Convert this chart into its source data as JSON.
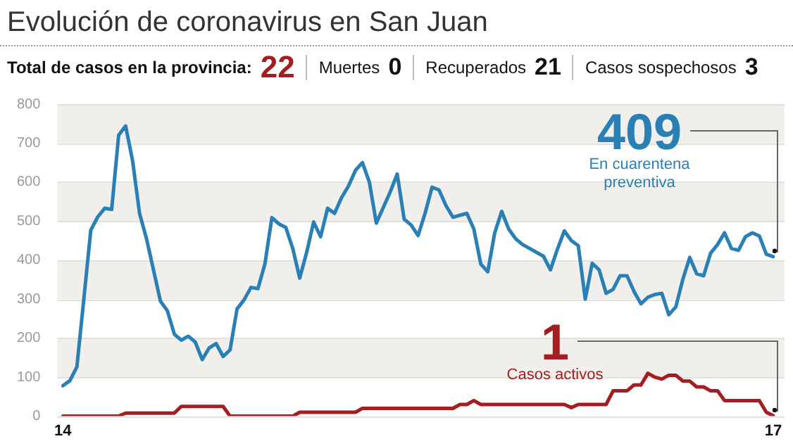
{
  "chart_data": {
    "type": "line",
    "title": "Evolución de coronavirus en San Juan",
    "annotations": [
      "Total de casos en la provincia:",
      "22",
      "Muertes",
      "0",
      "Recuperados",
      "21",
      "Casos sospechosos",
      "3"
    ],
    "categories": [
      "14",
      null,
      null,
      null,
      null,
      null,
      null,
      null,
      null,
      null,
      null,
      null,
      null,
      null,
      null,
      null,
      null,
      null,
      null,
      null,
      null,
      null,
      null,
      null,
      null,
      null,
      null,
      null,
      null,
      null,
      null,
      null,
      null,
      null,
      null,
      null,
      null,
      null,
      null,
      null,
      null,
      null,
      null,
      null,
      null,
      null,
      null,
      null,
      null,
      null,
      null,
      null,
      null,
      null,
      null,
      null,
      null,
      null,
      null,
      null,
      null,
      null,
      null,
      null,
      null,
      null,
      null,
      null,
      null,
      null,
      null,
      null,
      null,
      null,
      null,
      null,
      null,
      null,
      null,
      null,
      null,
      null,
      null,
      null,
      null,
      null,
      null,
      null,
      null,
      null,
      null,
      null,
      null,
      null,
      null,
      null,
      null,
      null,
      null,
      null,
      null,
      null,
      "17"
    ],
    "series": [
      {
        "name": "En cuarentena preventiva",
        "color": "#2a7fb5",
        "values": [
          78,
          91,
          126,
          300,
          477,
          511,
          533,
          530,
          720,
          744,
          655,
          520,
          455,
          375,
          295,
          270,
          210,
          195,
          205,
          190,
          145,
          175,
          186,
          153,
          170,
          275,
          298,
          330,
          327,
          390,
          509,
          493,
          484,
          430,
          354,
          420,
          498,
          460,
          533,
          520,
          560,
          590,
          630,
          650,
          600,
          495,
          535,
          575,
          621,
          505,
          490,
          463,
          520,
          587,
          580,
          540,
          510,
          515,
          520,
          480,
          390,
          370,
          470,
          525,
          480,
          455,
          440,
          430,
          420,
          410,
          375,
          428,
          475,
          450,
          437,
          300,
          392,
          375,
          315,
          325,
          360,
          360,
          320,
          288,
          305,
          312,
          315,
          260,
          280,
          350,
          407,
          365,
          360,
          418,
          440,
          470,
          430,
          425,
          460,
          470,
          462,
          415,
          409
        ],
        "value_labels": [
          null,
          null,
          null,
          null,
          null,
          null,
          null,
          null,
          null,
          null,
          null,
          null,
          null,
          null,
          null,
          null,
          null,
          null,
          null,
          null,
          null,
          null,
          null,
          null,
          null,
          null,
          null,
          null,
          null,
          null,
          null,
          null,
          null,
          null,
          null,
          null,
          null,
          null,
          null,
          null,
          null,
          null,
          null,
          null,
          null,
          null,
          null,
          null,
          null,
          null,
          null,
          null,
          null,
          null,
          null,
          null,
          null,
          null,
          null,
          null,
          null,
          null,
          null,
          null,
          null,
          null,
          null,
          null,
          null,
          null,
          null,
          null,
          null,
          null,
          null,
          null,
          null,
          null,
          null,
          null,
          null,
          null,
          null,
          null,
          null,
          null,
          null,
          null,
          null,
          null,
          null,
          null,
          null,
          null,
          null,
          null,
          null,
          null,
          null,
          null,
          null,
          null,
          "409"
        ]
      },
      {
        "name": "Casos activos",
        "color": "#a31d21",
        "values": [
          0,
          0,
          0,
          0,
          0,
          0,
          0,
          0,
          0,
          8,
          8,
          8,
          8,
          8,
          8,
          8,
          8,
          25,
          25,
          25,
          25,
          25,
          25,
          25,
          0,
          0,
          0,
          0,
          0,
          0,
          0,
          0,
          0,
          0,
          10,
          10,
          10,
          10,
          10,
          10,
          10,
          10,
          10,
          20,
          20,
          20,
          20,
          20,
          20,
          20,
          20,
          20,
          20,
          20,
          20,
          20,
          20,
          30,
          30,
          40,
          30,
          30,
          30,
          30,
          30,
          30,
          30,
          30,
          30,
          30,
          30,
          30,
          30,
          22,
          30,
          30,
          30,
          30,
          30,
          65,
          65,
          65,
          80,
          80,
          110,
          100,
          95,
          105,
          105,
          90,
          90,
          75,
          75,
          65,
          65,
          40,
          40,
          40,
          40,
          40,
          40,
          10,
          1
        ],
        "value_labels": [
          null,
          null,
          null,
          null,
          null,
          null,
          null,
          null,
          null,
          null,
          null,
          null,
          null,
          null,
          null,
          null,
          null,
          null,
          null,
          null,
          null,
          null,
          null,
          null,
          null,
          null,
          null,
          null,
          null,
          null,
          null,
          null,
          null,
          null,
          null,
          null,
          null,
          null,
          null,
          null,
          null,
          null,
          null,
          null,
          null,
          null,
          null,
          null,
          null,
          null,
          null,
          null,
          null,
          null,
          null,
          null,
          null,
          null,
          null,
          null,
          null,
          null,
          null,
          null,
          null,
          null,
          null,
          null,
          null,
          null,
          null,
          null,
          null,
          null,
          null,
          null,
          null,
          null,
          null,
          null,
          null,
          null,
          null,
          null,
          null,
          null,
          null,
          null,
          null,
          null,
          null,
          null,
          null,
          null,
          null,
          null,
          null,
          null,
          null,
          null,
          null,
          null,
          "1"
        ]
      }
    ],
    "ylim": [
      0,
      800
    ],
    "yticks": [
      0,
      100,
      200,
      300,
      400,
      500,
      600,
      700,
      800
    ],
    "grid": "y",
    "legend": false,
    "marker": "none",
    "line_style": "solid"
  }
}
